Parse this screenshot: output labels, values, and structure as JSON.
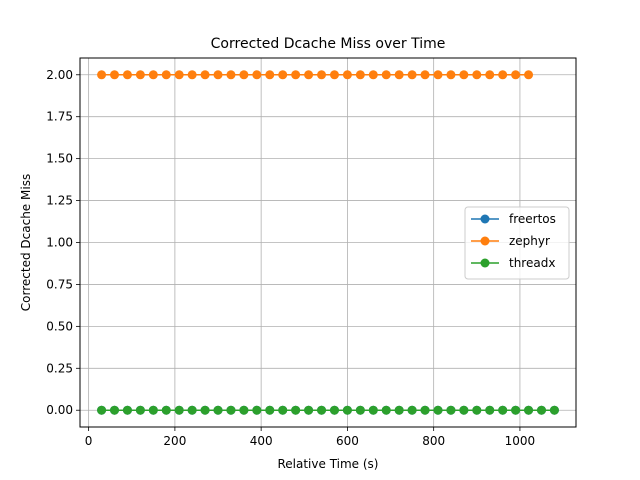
{
  "chart_data": {
    "type": "line",
    "title": "Corrected Dcache Miss over Time",
    "xlabel": "Relative Time (s)",
    "ylabel": "Corrected Dcache Miss",
    "xlim": [
      -20,
      1130
    ],
    "ylim": [
      -0.1,
      2.1
    ],
    "xticks": [
      0,
      200,
      400,
      600,
      800,
      1000
    ],
    "xtick_labels": [
      "0",
      "200",
      "400",
      "600",
      "800",
      "1000"
    ],
    "yticks": [
      0.0,
      0.25,
      0.5,
      0.75,
      1.0,
      1.25,
      1.5,
      1.75,
      2.0
    ],
    "ytick_labels": [
      "0.00",
      "0.25",
      "0.50",
      "0.75",
      "1.00",
      "1.25",
      "1.50",
      "1.75",
      "2.00"
    ],
    "grid": true,
    "legend_position": "center-right",
    "series": [
      {
        "name": "freertos",
        "color": "#1f77b4",
        "x": [
          30,
          60,
          90,
          120,
          150,
          180,
          210,
          240,
          270,
          300,
          330,
          360,
          390,
          420,
          450,
          480,
          510,
          540,
          570,
          600,
          630,
          660,
          690,
          720,
          750,
          780,
          810,
          840,
          870,
          900,
          930,
          960,
          990,
          1020,
          1050,
          1080
        ],
        "y": [
          0,
          0,
          0,
          0,
          0,
          0,
          0,
          0,
          0,
          0,
          0,
          0,
          0,
          0,
          0,
          0,
          0,
          0,
          0,
          0,
          0,
          0,
          0,
          0,
          0,
          0,
          0,
          0,
          0,
          0,
          0,
          0,
          0,
          0,
          0,
          0
        ]
      },
      {
        "name": "zephyr",
        "color": "#ff7f0e",
        "x": [
          30,
          60,
          90,
          120,
          150,
          180,
          210,
          240,
          270,
          300,
          330,
          360,
          390,
          420,
          450,
          480,
          510,
          540,
          570,
          600,
          630,
          660,
          690,
          720,
          750,
          780,
          810,
          840,
          870,
          900,
          930,
          960,
          990,
          1020
        ],
        "y": [
          2,
          2,
          2,
          2,
          2,
          2,
          2,
          2,
          2,
          2,
          2,
          2,
          2,
          2,
          2,
          2,
          2,
          2,
          2,
          2,
          2,
          2,
          2,
          2,
          2,
          2,
          2,
          2,
          2,
          2,
          2,
          2,
          2,
          2
        ]
      },
      {
        "name": "threadx",
        "color": "#2ca02c",
        "x": [
          30,
          60,
          90,
          120,
          150,
          180,
          210,
          240,
          270,
          300,
          330,
          360,
          390,
          420,
          450,
          480,
          510,
          540,
          570,
          600,
          630,
          660,
          690,
          720,
          750,
          780,
          810,
          840,
          870,
          900,
          930,
          960,
          990,
          1020,
          1050,
          1080
        ],
        "y": [
          0,
          0,
          0,
          0,
          0,
          0,
          0,
          0,
          0,
          0,
          0,
          0,
          0,
          0,
          0,
          0,
          0,
          0,
          0,
          0,
          0,
          0,
          0,
          0,
          0,
          0,
          0,
          0,
          0,
          0,
          0,
          0,
          0,
          0,
          0,
          0
        ]
      }
    ]
  }
}
